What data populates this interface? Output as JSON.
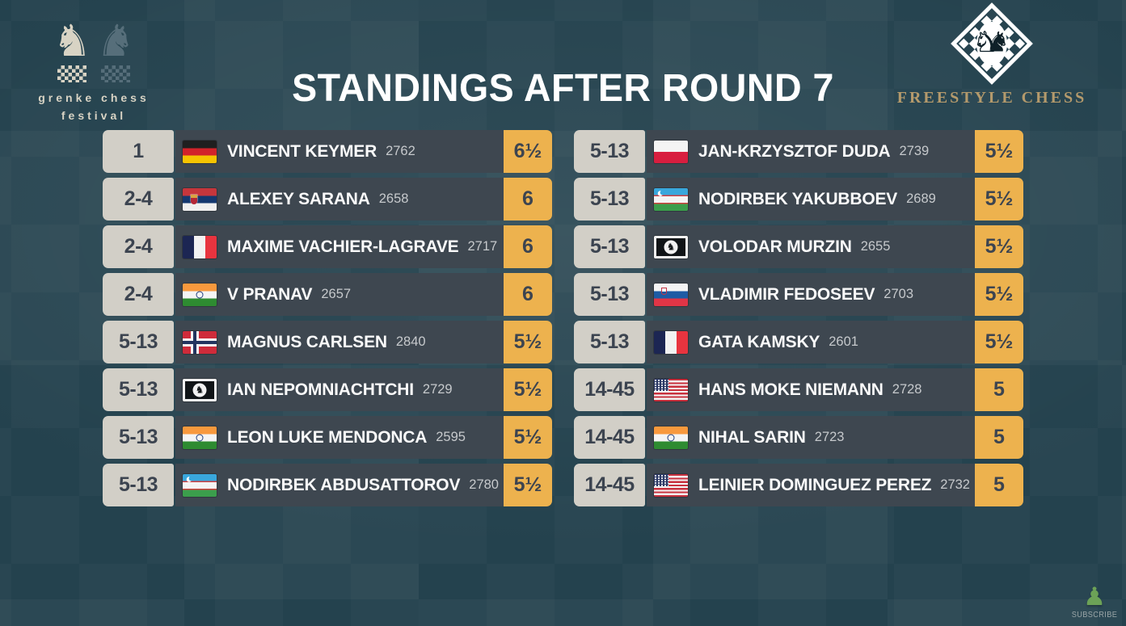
{
  "header": {
    "title": "STANDINGS AFTER ROUND 7",
    "grenke_logo": {
      "line1": "grenke chess",
      "line2": "festival"
    },
    "freestyle_logo": {
      "label": "FREESTYLE CHESS"
    }
  },
  "subscribe": {
    "label": "SUBSCRIBE"
  },
  "colors": {
    "background": "#24424e",
    "row_background": "#3e4750",
    "rank_cell": "#d2cfc7",
    "score_cell_accent": "#edb24e",
    "name_text": "#fafafa",
    "rating_text": "#c6c9cc",
    "freestyle_gold": "#b49a6c",
    "grenke_cream": "#d8d3c4",
    "subscribe_green": "#6ca257"
  },
  "standings": {
    "left": [
      {
        "rank": "1",
        "flag": "de",
        "country": "Germany",
        "name": "VINCENT KEYMER",
        "rating": "2762",
        "score": "6½"
      },
      {
        "rank": "2-4",
        "flag": "rs",
        "country": "Serbia",
        "name": "ALEXEY SARANA",
        "rating": "2658",
        "score": "6"
      },
      {
        "rank": "2-4",
        "flag": "fr",
        "country": "France",
        "name": "MAXIME VACHIER-LAGRAVE",
        "rating": "2717",
        "score": "6"
      },
      {
        "rank": "2-4",
        "flag": "in",
        "country": "India",
        "name": "V PRANAV",
        "rating": "2657",
        "score": "6"
      },
      {
        "rank": "5-13",
        "flag": "no",
        "country": "Norway",
        "name": "MAGNUS CARLSEN",
        "rating": "2840",
        "score": "5½"
      },
      {
        "rank": "5-13",
        "flag": "fide",
        "country": "FIDE",
        "name": "IAN NEPOMNIACHTCHI",
        "rating": "2729",
        "score": "5½"
      },
      {
        "rank": "5-13",
        "flag": "in",
        "country": "India",
        "name": "LEON LUKE MENDONCA",
        "rating": "2595",
        "score": "5½"
      },
      {
        "rank": "5-13",
        "flag": "uz",
        "country": "Uzbekistan",
        "name": "NODIRBEK ABDUSATTOROV",
        "rating": "2780",
        "score": "5½"
      }
    ],
    "right": [
      {
        "rank": "5-13",
        "flag": "pl",
        "country": "Poland",
        "name": "JAN-KRZYSZTOF DUDA",
        "rating": "2739",
        "score": "5½"
      },
      {
        "rank": "5-13",
        "flag": "uz",
        "country": "Uzbekistan",
        "name": "NODIRBEK YAKUBBOEV",
        "rating": "2689",
        "score": "5½"
      },
      {
        "rank": "5-13",
        "flag": "fide",
        "country": "FIDE",
        "name": "VOLODAR MURZIN",
        "rating": "2655",
        "score": "5½"
      },
      {
        "rank": "5-13",
        "flag": "si",
        "country": "Slovenia",
        "name": "VLADIMIR FEDOSEEV",
        "rating": "2703",
        "score": "5½"
      },
      {
        "rank": "5-13",
        "flag": "fr",
        "country": "France",
        "name": "GATA KAMSKY",
        "rating": "2601",
        "score": "5½"
      },
      {
        "rank": "14-45",
        "flag": "us",
        "country": "USA",
        "name": "HANS MOKE NIEMANN",
        "rating": "2728",
        "score": "5"
      },
      {
        "rank": "14-45",
        "flag": "in",
        "country": "India",
        "name": "NIHAL SARIN",
        "rating": "2723",
        "score": "5"
      },
      {
        "rank": "14-45",
        "flag": "us",
        "country": "USA",
        "name": "LEINIER DOMINGUEZ PEREZ",
        "rating": "2732",
        "score": "5"
      }
    ]
  }
}
